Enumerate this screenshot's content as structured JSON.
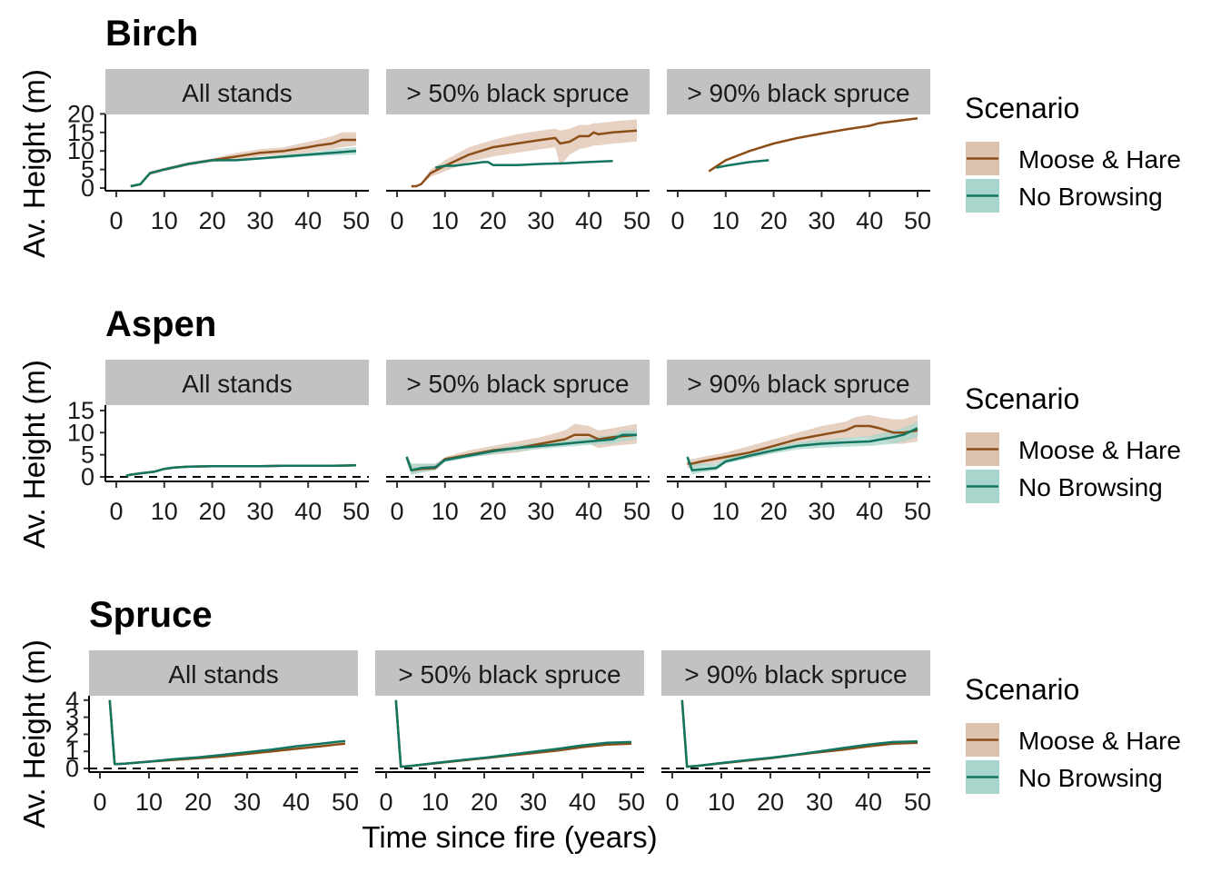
{
  "colors": {
    "moose_hare": "#8C4E17",
    "no_browsing": "#127560",
    "moose_hare_band": "#DDC2AD",
    "no_browsing_band": "#A8D5CC",
    "strip": "#C2C2C2"
  },
  "xlabel": "Time since fire (years)",
  "ylabel": "Av. Height (m)",
  "x_ticks": [
    "0",
    "10",
    "20",
    "30",
    "40",
    "50"
  ],
  "legend": {
    "title": "Scenario",
    "items": [
      "Moose & Hare",
      "No Browsing"
    ]
  },
  "chart_data": [
    {
      "type": "line",
      "title": "Birch",
      "ylabel": "Av. Height (m)",
      "ylim": [
        -1,
        21
      ],
      "y_ticks": [
        "0",
        "5",
        "10",
        "15",
        "20"
      ],
      "dashed_zero": false,
      "panels": [
        {
          "strip": "All stands",
          "series": [
            {
              "name": "Moose & Hare",
              "x": [
                3,
                5,
                7,
                10,
                15,
                20,
                25,
                30,
                35,
                40,
                42,
                45,
                47,
                50
              ],
              "y": [
                0.5,
                1,
                4,
                5,
                6.5,
                7.5,
                8.5,
                9.5,
                10,
                11,
                11.5,
                12,
                13,
                13
              ],
              "lower": [
                0.5,
                1,
                3.5,
                4.5,
                6,
                7,
                7.5,
                8.5,
                9,
                9.5,
                10,
                10.5,
                11,
                11.5
              ],
              "upper": [
                0.5,
                1,
                4.5,
                5.5,
                7,
                8,
                9.5,
                10.5,
                11,
                12.5,
                13,
                14,
                15,
                15
              ]
            },
            {
              "name": "No Browsing",
              "x": [
                3,
                5,
                7,
                10,
                15,
                20,
                25,
                30,
                35,
                40,
                45,
                50
              ],
              "y": [
                0.5,
                1,
                4,
                5,
                6.5,
                7.5,
                7.5,
                8,
                8.5,
                9,
                9.5,
                10
              ],
              "lower": [
                0.5,
                1,
                3.8,
                4.8,
                6.3,
                7.2,
                7.2,
                7.7,
                8,
                8.5,
                8.8,
                9
              ],
              "upper": [
                0.5,
                1,
                4.2,
                5.2,
                6.7,
                7.8,
                7.8,
                8.3,
                9,
                9.5,
                10.5,
                11
              ]
            }
          ]
        },
        {
          "strip": "> 50% black spruce",
          "series": [
            {
              "name": "Moose & Hare",
              "x": [
                3,
                4,
                5,
                7,
                10,
                15,
                20,
                25,
                30,
                33,
                34,
                36,
                38,
                40,
                41,
                42,
                45,
                50
              ],
              "y": [
                0.5,
                0.5,
                1,
                4,
                6,
                9,
                11,
                12,
                13,
                13.5,
                12,
                12.5,
                14,
                14,
                15,
                14.5,
                15,
                15.5
              ],
              "lower": [
                0.5,
                0.5,
                1,
                3,
                4.5,
                7,
                8.5,
                9.5,
                10.5,
                11,
                6,
                9,
                10.5,
                11,
                11.5,
                11.5,
                12,
                12.5
              ],
              "upper": [
                0.5,
                0.5,
                1,
                5,
                7.5,
                11,
                13,
                14.5,
                15.5,
                16,
                15.5,
                16,
                17,
                17,
                17.5,
                17.5,
                18,
                18.5
              ]
            },
            {
              "name": "No Browsing",
              "x": [
                8,
                10,
                12,
                15,
                18,
                19,
                20,
                25,
                30,
                35,
                40,
                45
              ],
              "y": [
                5.5,
                6,
                6,
                6.5,
                7,
                7,
                6.2,
                6.2,
                6.5,
                6.7,
                7,
                7.3
              ]
            }
          ]
        },
        {
          "strip": "> 90% black spruce",
          "series": [
            {
              "name": "Moose & Hare",
              "x": [
                6.5,
                10,
                15,
                20,
                25,
                30,
                35,
                40,
                42,
                45,
                50
              ],
              "y": [
                4.5,
                7.5,
                10,
                12,
                13.5,
                14.7,
                15.8,
                16.8,
                17.5,
                18,
                18.8
              ]
            },
            {
              "name": "No Browsing",
              "x": [
                8,
                10,
                15,
                19
              ],
              "y": [
                5.5,
                6,
                7,
                7.5
              ]
            }
          ]
        }
      ]
    },
    {
      "type": "line",
      "title": "Aspen",
      "ylabel": "Av. Height (m)",
      "ylim": [
        -1,
        16
      ],
      "y_ticks": [
        "0",
        "5",
        "10",
        "15"
      ],
      "dashed_zero": true,
      "panels": [
        {
          "strip": "All stands",
          "series": [
            {
              "name": "Moose & Hare",
              "x": [
                2,
                3,
                5,
                8,
                10,
                12,
                15,
                20,
                25,
                30,
                35,
                40,
                45,
                50
              ],
              "y": [
                0.2,
                0.5,
                0.8,
                1.2,
                1.8,
                2.1,
                2.3,
                2.4,
                2.4,
                2.4,
                2.5,
                2.5,
                2.5,
                2.6
              ]
            },
            {
              "name": "No Browsing",
              "x": [
                2,
                3,
                5,
                8,
                10,
                12,
                15,
                20,
                25,
                30,
                35,
                40,
                45,
                50
              ],
              "y": [
                0.2,
                0.5,
                0.8,
                1.2,
                1.8,
                2.1,
                2.3,
                2.4,
                2.4,
                2.4,
                2.5,
                2.5,
                2.5,
                2.6
              ]
            }
          ]
        },
        {
          "strip": "> 50% black spruce",
          "series": [
            {
              "name": "Moose & Hare",
              "x": [
                2,
                3,
                5,
                8,
                10,
                15,
                20,
                25,
                30,
                35,
                37,
                40,
                42,
                45,
                50
              ],
              "y": [
                4.5,
                1.5,
                1.8,
                2,
                4,
                5,
                6,
                6.5,
                7.5,
                8.5,
                9.5,
                9.5,
                8.5,
                9,
                9.5
              ],
              "lower": [
                3.5,
                0.5,
                1,
                1.5,
                3.5,
                4.5,
                5,
                5.5,
                6.5,
                7,
                7.5,
                7.5,
                6.5,
                7,
                7.5
              ],
              "upper": [
                5,
                3,
                3,
                3,
                4.5,
                6,
                7,
                8,
                9,
                10.5,
                12,
                11.5,
                10.5,
                11,
                12
              ]
            },
            {
              "name": "No Browsing",
              "x": [
                2,
                3,
                5,
                8,
                10,
                15,
                20,
                25,
                30,
                35,
                40,
                45,
                47,
                50
              ],
              "y": [
                4.5,
                1.5,
                2,
                2.2,
                3.8,
                4.8,
                5.8,
                6.5,
                7,
                7.5,
                8,
                8.5,
                9.5,
                9.5
              ],
              "lower": [
                3.5,
                0.5,
                1,
                1.5,
                3.3,
                4.3,
                5.2,
                5.8,
                6.3,
                6.8,
                7.2,
                7.5,
                8,
                8.5
              ],
              "upper": [
                5,
                3,
                3,
                3,
                4.3,
                5.3,
                6.4,
                7.2,
                7.8,
                8.3,
                8.8,
                9.5,
                10.5,
                10.5
              ]
            }
          ]
        },
        {
          "strip": "> 90% black spruce",
          "series": [
            {
              "name": "Moose & Hare",
              "x": [
                2,
                3,
                5,
                10,
                15,
                20,
                25,
                30,
                35,
                37,
                40,
                42,
                45,
                47,
                50
              ],
              "y": [
                3,
                3,
                3.5,
                4.5,
                5.5,
                7,
                8.5,
                9.5,
                10.5,
                11.5,
                11.5,
                11,
                10,
                10,
                10.5
              ],
              "lower": [
                2,
                2,
                2.5,
                3.5,
                4.5,
                5.5,
                7,
                7.5,
                8.5,
                9,
                9,
                8.5,
                7.5,
                7.5,
                8
              ],
              "upper": [
                4,
                4,
                4.5,
                5.5,
                7,
                8.5,
                10,
                11.5,
                12.5,
                13.5,
                14,
                13.5,
                13,
                13,
                14
              ]
            },
            {
              "name": "No Browsing",
              "x": [
                2,
                3,
                5,
                8,
                10,
                15,
                20,
                25,
                30,
                35,
                40,
                45,
                47,
                50
              ],
              "y": [
                4.5,
                1.5,
                1.7,
                2,
                3.5,
                4.8,
                6,
                7,
                7.5,
                7.8,
                8,
                9,
                9.5,
                11
              ],
              "lower": [
                3.5,
                0.5,
                1,
                1.5,
                3,
                4.2,
                5.3,
                6.2,
                6.6,
                6.8,
                7,
                7.5,
                8,
                9
              ],
              "upper": [
                5,
                3,
                3,
                3,
                4.2,
                5.5,
                6.8,
                7.8,
                8.4,
                8.8,
                9.2,
                10.5,
                11,
                12.5
              ]
            }
          ]
        }
      ]
    },
    {
      "type": "line",
      "title": "Spruce",
      "ylabel": "Av. Height (m)",
      "ylim": [
        -0.2,
        4.1
      ],
      "y_ticks": [
        "0",
        "1",
        "2",
        "3",
        "4"
      ],
      "dashed_zero": true,
      "panels": [
        {
          "strip": "All stands",
          "series": [
            {
              "name": "Moose & Hare",
              "x": [
                2,
                3,
                5,
                10,
                15,
                20,
                25,
                30,
                35,
                40,
                45,
                48,
                50
              ],
              "y": [
                4,
                0.25,
                0.28,
                0.4,
                0.5,
                0.6,
                0.7,
                0.85,
                1,
                1.15,
                1.3,
                1.4,
                1.45
              ]
            },
            {
              "name": "No Browsing",
              "x": [
                2,
                3,
                5,
                10,
                15,
                20,
                25,
                30,
                35,
                40,
                45,
                48,
                50
              ],
              "y": [
                4,
                0.25,
                0.28,
                0.4,
                0.55,
                0.65,
                0.8,
                0.95,
                1.1,
                1.3,
                1.45,
                1.55,
                1.6
              ]
            }
          ]
        },
        {
          "strip": "> 50% black spruce",
          "series": [
            {
              "name": "Moose & Hare",
              "x": [
                2,
                3,
                5,
                10,
                15,
                20,
                25,
                30,
                35,
                40,
                45,
                50
              ],
              "y": [
                4,
                0.1,
                0.15,
                0.3,
                0.45,
                0.6,
                0.75,
                0.9,
                1.05,
                1.25,
                1.4,
                1.45
              ]
            },
            {
              "name": "No Browsing",
              "x": [
                2,
                3,
                5,
                10,
                15,
                20,
                25,
                30,
                35,
                40,
                45,
                50
              ],
              "y": [
                4,
                0.1,
                0.15,
                0.32,
                0.48,
                0.62,
                0.8,
                0.98,
                1.15,
                1.35,
                1.5,
                1.55
              ]
            }
          ]
        },
        {
          "strip": "> 90% black spruce",
          "series": [
            {
              "name": "Moose & Hare",
              "x": [
                2,
                3,
                5,
                10,
                15,
                20,
                25,
                30,
                35,
                40,
                45,
                50
              ],
              "y": [
                4,
                0.1,
                0.15,
                0.3,
                0.45,
                0.6,
                0.78,
                0.95,
                1.1,
                1.3,
                1.45,
                1.5
              ]
            },
            {
              "name": "No Browsing",
              "x": [
                2,
                3,
                5,
                10,
                15,
                20,
                25,
                30,
                35,
                40,
                45,
                50
              ],
              "y": [
                4,
                0.1,
                0.15,
                0.32,
                0.48,
                0.62,
                0.8,
                1.0,
                1.2,
                1.4,
                1.55,
                1.58
              ]
            }
          ]
        }
      ]
    }
  ]
}
